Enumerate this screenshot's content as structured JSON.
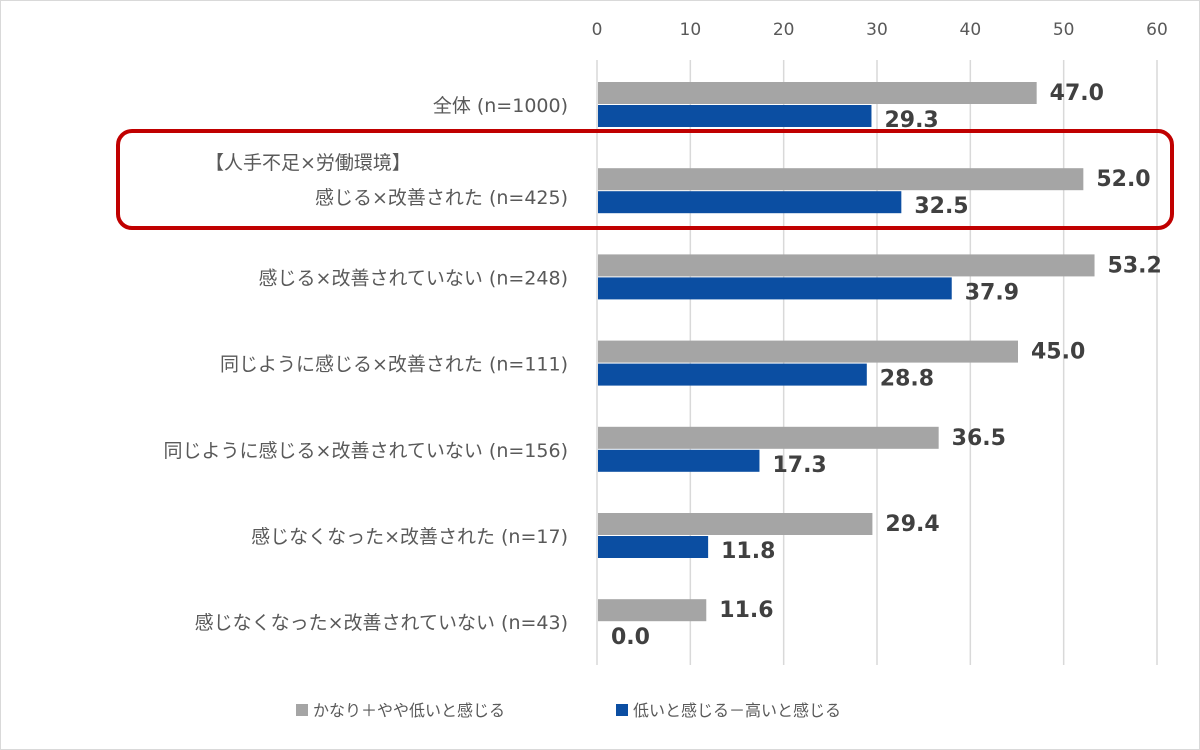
{
  "chart_data": {
    "type": "bar",
    "orientation": "horizontal",
    "categories": [
      [
        "全体 (n=1000)"
      ],
      [
        "【人手不足×労働環境】",
        "感じる×改善された (n=425)"
      ],
      [
        "感じる×改善されていない (n=248)"
      ],
      [
        "同じように感じる×改善された (n=111)"
      ],
      [
        "同じように感じる×改善されていない (n=156)"
      ],
      [
        "感じなくなった×改善された (n=17)"
      ],
      [
        "感じなくなった×改善されていない (n=43)"
      ]
    ],
    "series": [
      {
        "name": "かなり＋やや低いと感じる",
        "color": "#A5A5A5",
        "values": [
          47.0,
          52.0,
          53.2,
          45.0,
          36.5,
          29.4,
          11.6
        ]
      },
      {
        "name": "低いと感じる－高いと感じる",
        "color": "#0B4EA2",
        "values": [
          29.3,
          32.5,
          37.9,
          28.8,
          17.3,
          11.8,
          0.0
        ]
      }
    ],
    "xlim": [
      0,
      60
    ],
    "xticks": [
      "0",
      "10",
      "20",
      "30",
      "40",
      "50",
      "60"
    ],
    "axis_position": "top",
    "grid": true,
    "legend": "bottom",
    "highlight": {
      "category_index": 1,
      "color": "#C00000"
    }
  }
}
